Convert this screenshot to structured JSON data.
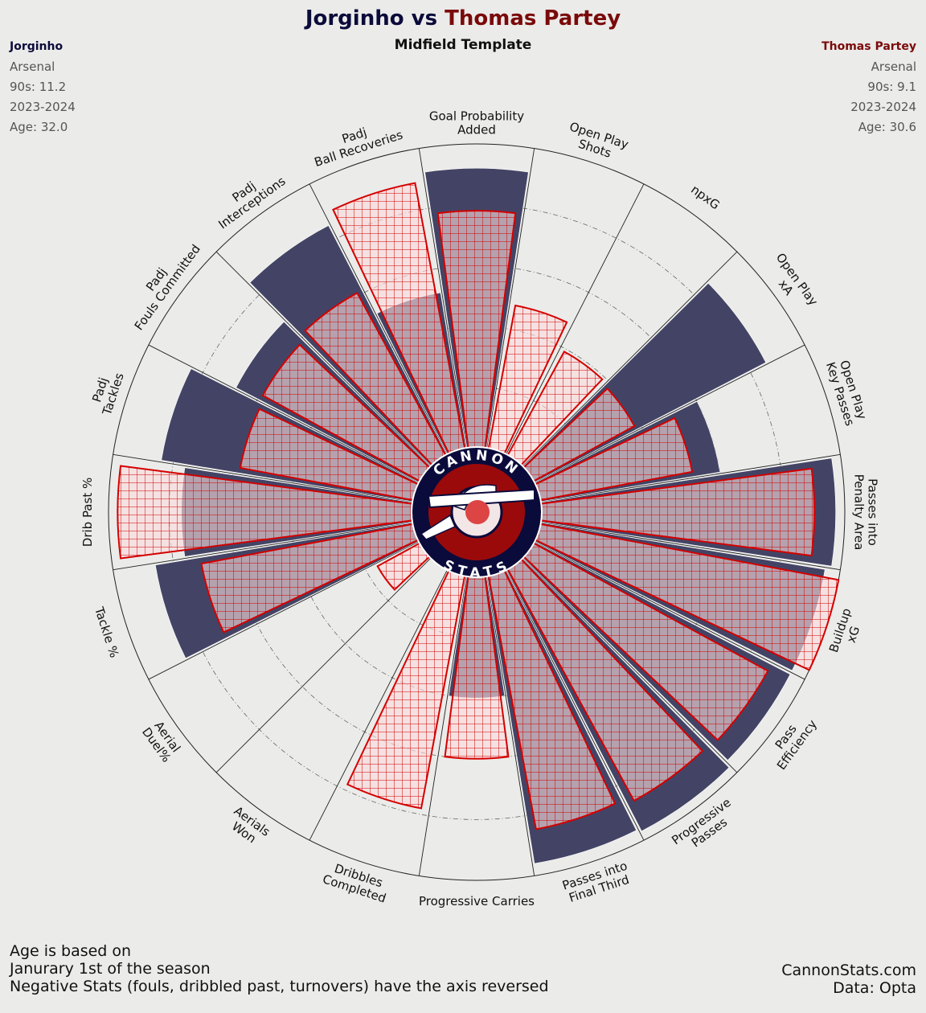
{
  "header": {
    "player1": "Jorginho",
    "vs": "vs",
    "player2": "Thomas Partey",
    "subtitle": "Midfield Template"
  },
  "player1_info": {
    "name": "Jorginho",
    "team": "Arsenal",
    "nineties": "90s: 11.2",
    "season": "2023-2024",
    "age": "Age: 32.0"
  },
  "player2_info": {
    "name": "Thomas Partey",
    "team": "Arsenal",
    "nineties": "90s: 9.1",
    "season": "2023-2024",
    "age": "Age: 30.6"
  },
  "logo": {
    "top_text": "CANNON",
    "bottom_text": "STATS"
  },
  "footer": {
    "note_line1": "Age is based on",
    "note_line2": "Janurary 1st of the season",
    "note_line3": "Negative Stats (fouls, dribbled past, turnovers) have the axis reversed",
    "site": "CannonStats.com",
    "source": "Data: Opta"
  },
  "colors": {
    "background": "#ebebe9",
    "player1": "#0b0b3b",
    "player1_fill": "#434465",
    "player2": "#7a0a0a",
    "player2_edge": "#d40000",
    "player2_fill": "#fbdcdc"
  },
  "chart_data": {
    "type": "radar",
    "title": "Jorginho vs Thomas Partey",
    "subtitle": "Midfield Template",
    "scale": [
      0,
      100
    ],
    "categories": [
      "Goal Probability\nAdded",
      "Open Play\nShots",
      "npxG",
      "Open Play\nxA",
      "Open Play\nKey Passes",
      "Passes into\nPenalty Area",
      "Buildup\nxG",
      "Pass\nEfficiency",
      "Progressive\nPasses",
      "Passes into\nFinal Third",
      "Progressive Carries",
      "Dribbles\nCompleted",
      "Aerials\nWon",
      "Aerial\nDuel%",
      "Tackle %",
      "Drib Past %",
      "Padj\nTackles",
      "Padj\nFouls Committed",
      "Padj\nInterceptions",
      "Padj\nBall Recoveries"
    ],
    "series": [
      {
        "name": "Jorginho",
        "values": [
          92,
          0,
          0,
          86,
          60,
          97,
          95,
          95,
          97,
          96,
          40,
          0,
          0,
          0,
          86,
          76,
          84,
          68,
          85,
          52
        ]
      },
      {
        "name": "Thomas Partey",
        "values": [
          78,
          48,
          39,
          38,
          51,
          90,
          100,
          88,
          87,
          85,
          60,
          78,
          0,
          16,
          71,
          97,
          58,
          59,
          61,
          89
        ]
      }
    ]
  }
}
